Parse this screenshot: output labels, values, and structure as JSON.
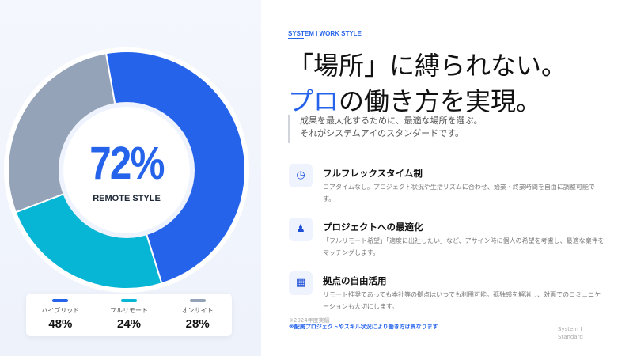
{
  "chart_data": {
    "type": "pie",
    "categories": [
      "ハイブリッド",
      "フルリモート",
      "オンサイト"
    ],
    "values": [
      48,
      24,
      28
    ],
    "colors": [
      "#2563eb",
      "#06b6d4",
      "#94a3b8"
    ],
    "center_value": "72%",
    "center_label": "REMOTE STYLE",
    "legend": [
      {
        "label": "ハイブリッド",
        "value": "48%"
      },
      {
        "label": "フルリモート",
        "value": "24%"
      },
      {
        "label": "オンサイト",
        "value": "28%"
      }
    ],
    "legend_placement": "bottom"
  },
  "header": {
    "eyebrow": "SYSTEM I WORK STYLE",
    "title_line1": "「場所」に縛られない。",
    "title_line2_accent": "プロ",
    "title_line2_rest": "の働き方を実現。",
    "lead_line1": "成果を最大化するために、最適な場所を選ぶ。",
    "lead_line2": "それがシステムアイのスタンダードです。"
  },
  "features": [
    {
      "icon": "clock-icon",
      "title": "フルフレックスタイム制",
      "desc": "コアタイムなし。プロジェクト状況や生活リズムに合わせ、始業・終業時間を自由に調整可能です。"
    },
    {
      "icon": "user-check-icon",
      "title": "プロジェクトへの最適化",
      "desc": "「フルリモート希望」「適度に出社したい」など、アサイン時に個人の希望を考慮し、最適な案件をマッチングします。"
    },
    {
      "icon": "building-icon",
      "title": "拠点の自由活用",
      "desc": "リモート推奨であっても本社等の拠点はいつでも利用可能。孤独感を解消し、対面でのコミュニケーションも大切にします。"
    }
  ],
  "notes": {
    "note1": "※2024年度実績",
    "note2": "※配属プロジェクトやスキル状況により働き方は異なります"
  },
  "footer": {
    "line1": "System I",
    "line2": "Standard"
  }
}
